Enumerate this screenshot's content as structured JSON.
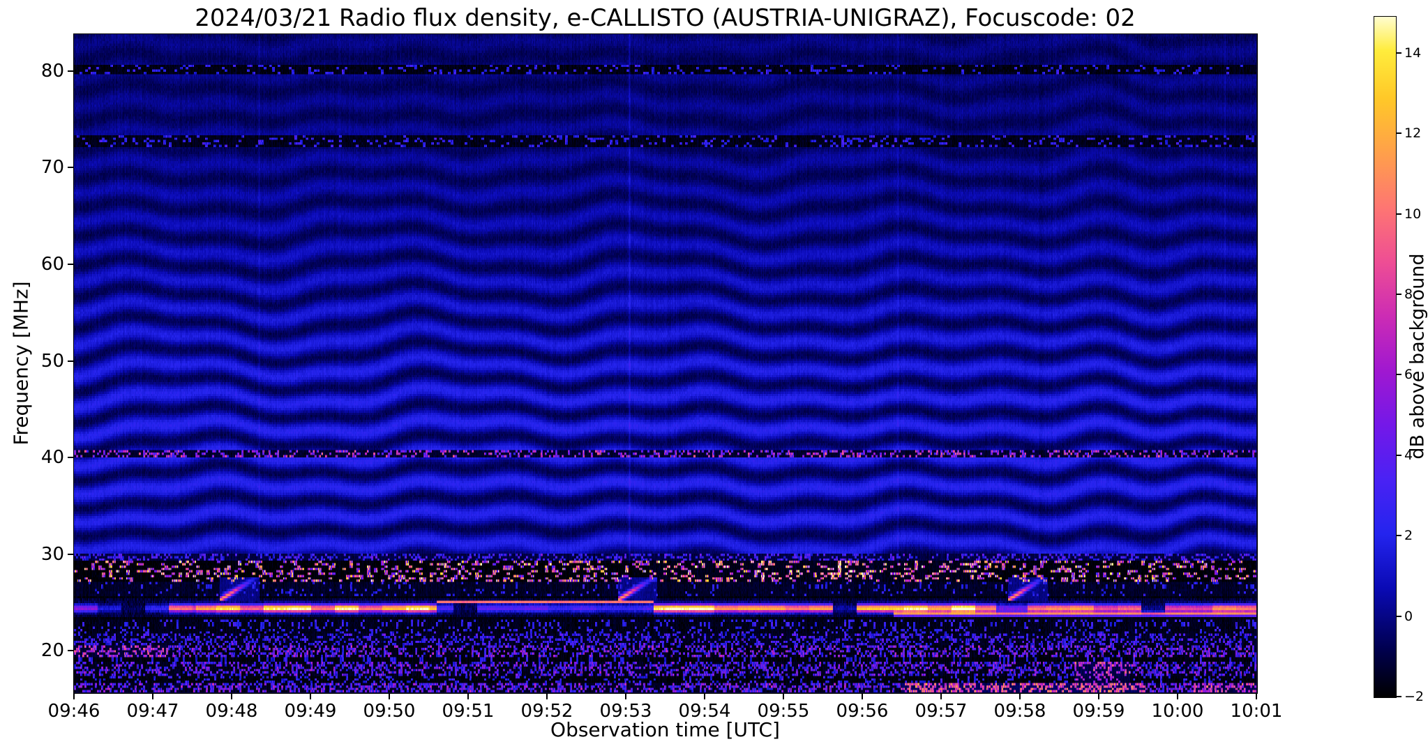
{
  "figure": {
    "background": "#ffffff"
  },
  "chart_data": {
    "type": "heatmap",
    "subtype": "radio-spectrogram",
    "title": "2024/03/21  Radio flux density, e-CALLISTO (AUSTRIA-UNIGRAZ), Focuscode: 02",
    "xlabel": "Observation time [UTC]",
    "ylabel": "Frequency [MHz]",
    "x_ticks": [
      "09:46",
      "09:47",
      "09:48",
      "09:49",
      "09:50",
      "09:51",
      "09:52",
      "09:53",
      "09:54",
      "09:55",
      "09:56",
      "09:57",
      "09:58",
      "09:59",
      "10:00",
      "10:01"
    ],
    "x_range_minutes": [
      0,
      15
    ],
    "y_ticks": [
      20,
      30,
      40,
      50,
      60,
      70,
      80
    ],
    "y_range_mhz": [
      15.7,
      83.8
    ],
    "grid": false,
    "colorbar": {
      "label": "dB above background",
      "ticks": [
        -2,
        0,
        2,
        4,
        6,
        8,
        10,
        12,
        14
      ],
      "tick_labels": [
        "−2",
        "0",
        "2",
        "4",
        "6",
        "8",
        "10",
        "12",
        "14"
      ],
      "range": [
        -2,
        14.9
      ],
      "stops": [
        [
          0.0,
          "#000000"
        ],
        [
          0.07,
          "#00004e"
        ],
        [
          0.16,
          "#0a0ab4"
        ],
        [
          0.24,
          "#2424ee"
        ],
        [
          0.32,
          "#4a22f4"
        ],
        [
          0.4,
          "#7418e8"
        ],
        [
          0.48,
          "#a018d0"
        ],
        [
          0.56,
          "#cc2cb4"
        ],
        [
          0.64,
          "#ee4e94"
        ],
        [
          0.72,
          "#fe7672"
        ],
        [
          0.8,
          "#ffa04a"
        ],
        [
          0.88,
          "#ffc828"
        ],
        [
          0.95,
          "#ffec3c"
        ],
        [
          1.0,
          "#fffdd0"
        ]
      ]
    },
    "features": {
      "fringe_min_f": 30.1,
      "fringes": {
        "spacing": 3.05,
        "crest_base": 0.6,
        "crest_peak": 2.3,
        "crest_center": 40,
        "crest_width": 26,
        "trough": -0.7,
        "chevron_t": 13.85
      },
      "bands": [
        {
          "name": "bottom-speckle",
          "f0": 15.7,
          "f1": 16.6,
          "p": 0.5,
          "vmin": 1.2,
          "vmax": 6.5,
          "bg": -1.5,
          "block": 3
        },
        {
          "name": "dark-16-17",
          "f0": 16.6,
          "f1": 17.5,
          "p": 0.2,
          "vmin": 0.8,
          "vmax": 3.5,
          "bg": -1.8,
          "block": 3
        },
        {
          "name": "speckle-17-18",
          "f0": 17.5,
          "f1": 18.8,
          "p": 0.45,
          "vmin": 0.8,
          "vmax": 6.0,
          "bg": -1.6,
          "block": 3
        },
        {
          "name": "dark-18-19",
          "f0": 18.8,
          "f1": 19.3,
          "p": 0.15,
          "vmin": 0.8,
          "vmax": 3.0,
          "bg": -1.8,
          "block": 3
        },
        {
          "name": "speckle-19-20",
          "f0": 19.3,
          "f1": 20.5,
          "p": 0.45,
          "vmin": 0.8,
          "vmax": 6.5,
          "bg": -1.7,
          "block": 3
        },
        {
          "name": "speckle-21",
          "f0": 20.5,
          "f1": 21.9,
          "p": 0.35,
          "vmin": 0.8,
          "vmax": 4.5,
          "bg": -1.5,
          "block": 3
        },
        {
          "name": "dark-22-23",
          "f0": 21.9,
          "f1": 23.2,
          "p": 0.18,
          "vmin": 1.2,
          "vmax": 3.5,
          "bg": -1.6,
          "block": 3
        },
        {
          "name": "dark-25-27",
          "f0": 25.62,
          "f1": 27.2,
          "p": 0.1,
          "vmin": 1.0,
          "vmax": 3.0,
          "bg": -1.4,
          "block": 3
        },
        {
          "name": "rfi-cb-band",
          "f0": 27.2,
          "f1": 29.35,
          "p": 0.27,
          "vmin": 3.0,
          "vmax": 13.0,
          "bg": -1.9,
          "block": 5
        },
        {
          "name": "speckle-29-30",
          "f0": 29.35,
          "f1": 30.1,
          "p": 0.33,
          "vmin": 1.0,
          "vmax": 4.5,
          "bg": -1.0,
          "block": 3
        },
        {
          "name": "line-40mhz",
          "f0": 40.05,
          "f1": 40.85,
          "p": 0.3,
          "vmin": 2.5,
          "vmax": 8.5,
          "bg": -1.3,
          "block": 3
        },
        {
          "name": "line-72mhz",
          "f0": 72.1,
          "f1": 73.3,
          "p": 0.17,
          "vmin": 1.2,
          "vmax": 3.6,
          "bg": -1.6,
          "block": 4
        },
        {
          "name": "line-80mhz",
          "f0": 79.7,
          "f1": 80.7,
          "p": 0.15,
          "vmin": 1.2,
          "vmax": 3.4,
          "bg": -1.7,
          "block": 4
        }
      ],
      "emission_band": {
        "dark_low": [
          23.2,
          23.42
        ],
        "dark_high": [
          25.45,
          25.62
        ],
        "center": 24.4,
        "sigma": 0.42,
        "segments": [
          [
            0,
            0.3,
            8
          ],
          [
            0.3,
            1.2,
            3.5
          ],
          [
            1.2,
            1.55,
            10
          ],
          [
            1.55,
            4.6,
            13.5
          ],
          [
            4.6,
            7.35,
            4.5
          ],
          [
            7.35,
            11.7,
            14.5
          ],
          [
            11.7,
            12.1,
            6
          ],
          [
            12.1,
            15.01,
            12
          ]
        ],
        "second_line": {
          "center": 23.8,
          "sigma": 0.22,
          "t_start": 10.4,
          "intensity": 10.5
        },
        "top_line": {
          "center": 25.05,
          "sigma": 0.12,
          "t0": 4.6,
          "t1": 7.35,
          "intensity": 11
        }
      },
      "bursts": [
        {
          "t": 1.9
        },
        {
          "t": 6.95
        },
        {
          "t": 11.9
        }
      ],
      "hot_patches": [
        {
          "t0": 10.5,
          "t1": 13.6,
          "f0": 15.7,
          "f1": 16.6,
          "boost": 4.5
        },
        {
          "t0": 14.2,
          "t1": 15.0,
          "f0": 15.7,
          "f1": 16.6,
          "boost": 3.0
        },
        {
          "t0": 0.0,
          "t1": 1.2,
          "f0": 19.3,
          "f1": 20.5,
          "boost": 2.5
        },
        {
          "t0": 12.7,
          "t1": 13.4,
          "f0": 16.6,
          "f1": 18.8,
          "boost": 3.5
        },
        {
          "t0": 7.3,
          "t1": 11.5,
          "f0": 27.2,
          "f1": 29.35,
          "boost": 1.5
        }
      ],
      "vlines": [
        {
          "t": 7.05,
          "boost": 0.9
        },
        {
          "t": 2.35,
          "boost": 0.5
        },
        {
          "t": 10.45,
          "boost": 0.6
        },
        {
          "t": 14.6,
          "boost": 0.5
        }
      ],
      "noise": {
        "column": 0.5,
        "pixel": 0.6
      }
    }
  }
}
